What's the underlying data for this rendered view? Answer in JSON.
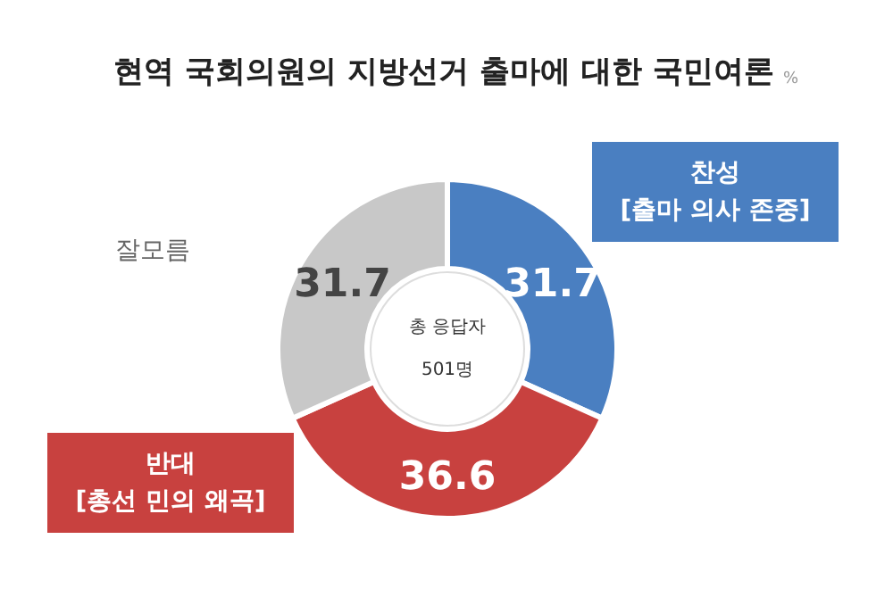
{
  "chart_data": {
    "type": "donut",
    "title": "현역 국회의원의 지방선거 출마에 대한 국민여론",
    "subtitle": "%",
    "categories": [
      "찬성\n[출마 의사 존중]",
      "반대\n[총선 민의 왜곡]",
      "잘모름"
    ],
    "values": [
      31.7,
      36.6,
      31.7
    ],
    "colors": [
      "#4a7fc1",
      "#c8413f",
      "#c8c8c8"
    ],
    "data_labels": true,
    "annotations": [
      "총 응답자",
      "501명"
    ]
  }
}
